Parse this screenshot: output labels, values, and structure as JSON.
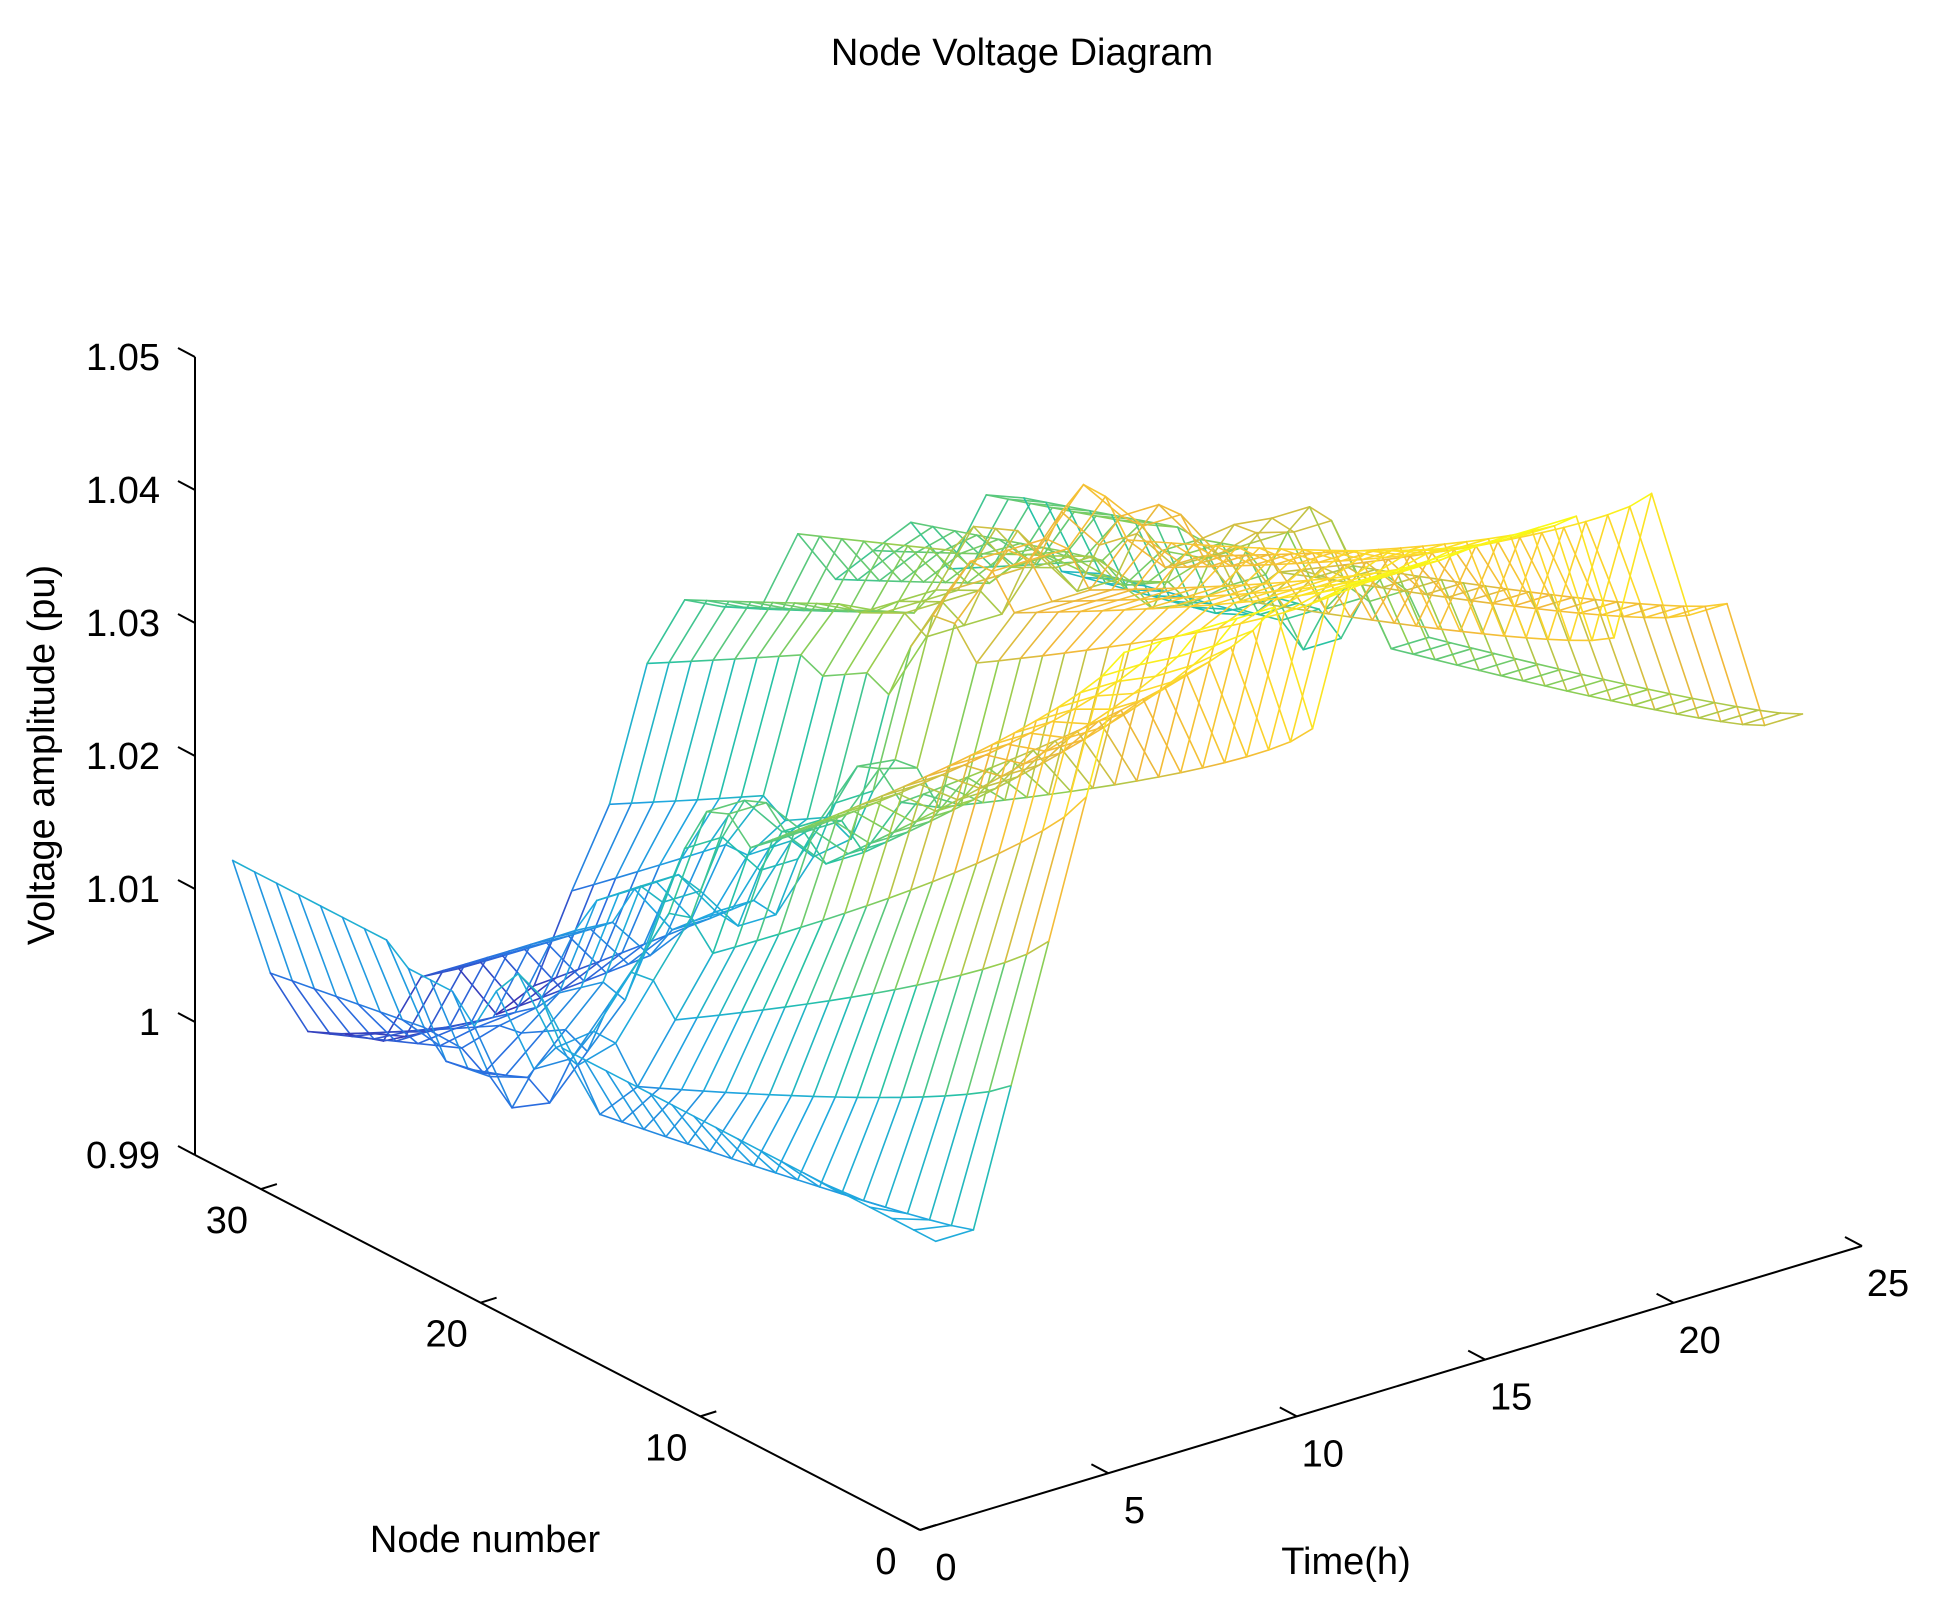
{
  "chart_data": {
    "type": "surface-mesh",
    "title": "Node Voltage Diagram",
    "xlabel": "Time(h)",
    "ylabel": "Node number",
    "zlabel": "Voltage amplitude (pu)",
    "xlim": [
      0,
      25
    ],
    "ylim": [
      0,
      33
    ],
    "zlim": [
      0.99,
      1.05
    ],
    "x_ticks": [
      {
        "value": 0,
        "label": "0"
      },
      {
        "value": 5,
        "label": "5"
      },
      {
        "value": 10,
        "label": "10"
      },
      {
        "value": 15,
        "label": "15"
      },
      {
        "value": 20,
        "label": "20"
      },
      {
        "value": 25,
        "label": "25"
      }
    ],
    "y_ticks": [
      {
        "value": 0,
        "label": "0"
      },
      {
        "value": 10,
        "label": "10"
      },
      {
        "value": 20,
        "label": "20"
      },
      {
        "value": 30,
        "label": "30"
      }
    ],
    "z_ticks": [
      {
        "value": 0.99,
        "label": "0.99"
      },
      {
        "value": 1.0,
        "label": "1"
      },
      {
        "value": 1.01,
        "label": "1.01"
      },
      {
        "value": 1.02,
        "label": "1.02"
      },
      {
        "value": 1.03,
        "label": "1.03"
      },
      {
        "value": 1.04,
        "label": "1.04"
      },
      {
        "value": 1.05,
        "label": "1.05"
      }
    ],
    "hours": [
      1,
      24
    ],
    "nodes": [
      1,
      33
    ],
    "colormap": [
      "#3e26a8",
      "#2a6de0",
      "#1fa9e0",
      "#25c2a6",
      "#92cf50",
      "#f1b73a",
      "#fcd52c",
      "#f9fb15"
    ],
    "grid": false,
    "legend": false,
    "approx_feeder_start_voltage_by_hour": [
      1.01,
      1.01,
      1.02,
      1.03,
      1.04,
      1.05,
      1.05,
      1.05,
      1.05,
      1.05,
      1.04,
      1.05,
      1.05,
      1.05,
      1.05,
      1.05,
      1.05,
      1.05,
      1.04,
      1.05,
      1.04,
      1.04,
      1.03,
      1.03
    ],
    "approx_feeder_end_voltage_by_hour": [
      1.01,
      1.0,
      0.995,
      0.995,
      0.995,
      1.0,
      1.0,
      0.995,
      0.995,
      1.0,
      1.005,
      1.015,
      1.02,
      1.02,
      1.02,
      1.025,
      1.02,
      1.02,
      1.02,
      1.015,
      1.02,
      1.02,
      1.015,
      1.015
    ]
  }
}
